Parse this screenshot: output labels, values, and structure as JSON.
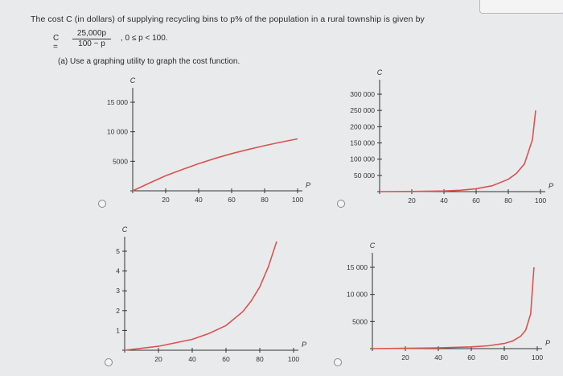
{
  "question": {
    "prompt": "The cost C (in dollars) of supplying recycling bins to p% of the population in a rural township is given by",
    "formula_lhs": "C =",
    "formula_numerator": "25,000p",
    "formula_denominator": "100 − p",
    "formula_domain": ",     0 ≤ p < 100.",
    "part_a": "(a) Use a graphing utility to graph the cost function."
  },
  "colors": {
    "curve": "#d9534f",
    "axis": "#333333",
    "background": "#e9eaec"
  },
  "chart_data": [
    {
      "type": "line",
      "choice": 1,
      "xlabel": "p",
      "ylabel": "C",
      "x_ticks": [
        "20",
        "40",
        "60",
        "80",
        "100"
      ],
      "y_ticks": [
        "5000",
        "10 000",
        "15 000"
      ],
      "xlim": [
        0,
        100
      ],
      "ylim": [
        0,
        15000
      ],
      "series": [
        {
          "x": [
            0,
            10,
            20,
            30,
            40,
            50,
            60,
            70,
            80,
            90,
            100
          ],
          "y": [
            0,
            1300,
            2550,
            3600,
            4600,
            5500,
            6300,
            7000,
            7650,
            8250,
            8800
          ]
        }
      ]
    },
    {
      "type": "line",
      "choice": 2,
      "xlabel": "p",
      "ylabel": "C",
      "x_ticks": [
        "20",
        "40",
        "60",
        "80",
        "100"
      ],
      "y_ticks": [
        "50 000",
        "100 000",
        "150 000",
        "200 000",
        "250 000",
        "300 000"
      ],
      "xlim": [
        0,
        100
      ],
      "ylim": [
        0,
        300000
      ],
      "series": [
        {
          "x": [
            0,
            20,
            40,
            50,
            60,
            70,
            80,
            85,
            90,
            95,
            97
          ],
          "y": [
            0,
            400,
            2000,
            4200,
            9000,
            18000,
            38000,
            56000,
            85000,
            160000,
            250000
          ]
        }
      ]
    },
    {
      "type": "line",
      "choice": 3,
      "xlabel": "p",
      "ylabel": "C",
      "x_ticks": [
        "20",
        "40",
        "60",
        "80",
        "100"
      ],
      "y_ticks": [
        "1",
        "2",
        "3",
        "4",
        "5"
      ],
      "xlim": [
        0,
        100
      ],
      "ylim": [
        0,
        5
      ],
      "series": [
        {
          "x": [
            0,
            20,
            40,
            50,
            60,
            70,
            75,
            80,
            85,
            90
          ],
          "y": [
            0,
            0.2,
            0.55,
            0.85,
            1.25,
            1.95,
            2.5,
            3.2,
            4.2,
            5.5
          ]
        }
      ]
    },
    {
      "type": "line",
      "choice": 4,
      "xlabel": "p",
      "ylabel": "C",
      "x_ticks": [
        "20",
        "40",
        "60",
        "80",
        "100"
      ],
      "y_ticks": [
        "5000",
        "10 000",
        "15 000"
      ],
      "xlim": [
        0,
        100
      ],
      "ylim": [
        0,
        15000
      ],
      "series": [
        {
          "x": [
            0,
            20,
            40,
            60,
            70,
            80,
            85,
            90,
            93,
            96,
            98
          ],
          "y": [
            0,
            60,
            140,
            320,
            520,
            950,
            1400,
            2300,
            3400,
            6400,
            15000
          ]
        }
      ]
    }
  ]
}
